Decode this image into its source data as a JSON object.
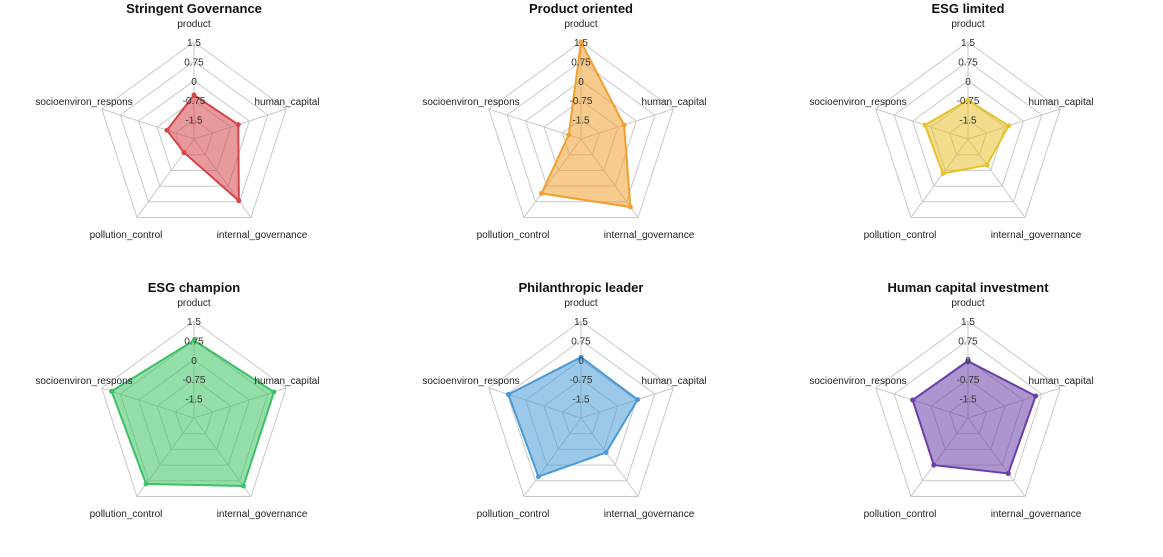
{
  "chart_data": [
    {
      "type": "radar",
      "title": "Stringent Governance",
      "axes": [
        "product",
        "human_capital",
        "internal_governance",
        "pollution_control",
        "socioenviron_respons"
      ],
      "ticks": [
        "1.5",
        "0.75",
        "0",
        "-0.75",
        "-1.5"
      ],
      "range": [
        -2.25,
        1.5
      ],
      "values": [
        -0.55,
        -0.45,
        0.7,
        -1.6,
        -1.15
      ],
      "color": "#d64548"
    },
    {
      "type": "radar",
      "title": "Product oriented",
      "axes": [
        "product",
        "human_capital",
        "internal_governance",
        "pollution_control",
        "socioenviron_respons"
      ],
      "ticks": [
        "1.5",
        "0.75",
        "0",
        "-0.75",
        "-1.5"
      ],
      "range": [
        -2.25,
        1.5
      ],
      "values": [
        1.5,
        -0.5,
        1.0,
        0.35,
        -1.75
      ],
      "color": "#f0a030"
    },
    {
      "type": "radar",
      "title": "ESG limited",
      "axes": [
        "product",
        "human_capital",
        "internal_governance",
        "pollution_control",
        "socioenviron_respons"
      ],
      "ticks": [
        "1.5",
        "0.75",
        "0",
        "-0.75",
        "-1.5"
      ],
      "range": [
        -2.25,
        1.5
      ],
      "values": [
        -0.75,
        -0.6,
        -1.0,
        -0.6,
        -0.5
      ],
      "color": "#e8c12e"
    },
    {
      "type": "radar",
      "title": "ESG champion",
      "axes": [
        "product",
        "human_capital",
        "internal_governance",
        "pollution_control",
        "socioenviron_respons"
      ],
      "ticks": [
        "1.5",
        "0.75",
        "0",
        "-0.75",
        "-1.5"
      ],
      "range": [
        -2.25,
        1.5
      ],
      "values": [
        0.75,
        1.0,
        1.0,
        0.9,
        1.1
      ],
      "color": "#3cc264"
    },
    {
      "type": "radar",
      "title": "Philanthropic leader",
      "axes": [
        "product",
        "human_capital",
        "internal_governance",
        "pollution_control",
        "socioenviron_respons"
      ],
      "ticks": [
        "1.5",
        "0.75",
        "0",
        "-0.75",
        "-1.5"
      ],
      "range": [
        -2.25,
        1.5
      ],
      "values": [
        0.1,
        0.05,
        -0.6,
        0.55,
        0.7
      ],
      "color": "#4b9ad8"
    },
    {
      "type": "radar",
      "title": "Human capital investment",
      "axes": [
        "product",
        "human_capital",
        "internal_governance",
        "pollution_control",
        "socioenviron_respons"
      ],
      "ticks": [
        "1.5",
        "0.75",
        "0",
        "-0.75",
        "-1.5"
      ],
      "range": [
        -2.25,
        1.5
      ],
      "values": [
        -0.05,
        0.5,
        0.4,
        0.0,
        0.0
      ],
      "color": "#6a3fa8"
    }
  ]
}
